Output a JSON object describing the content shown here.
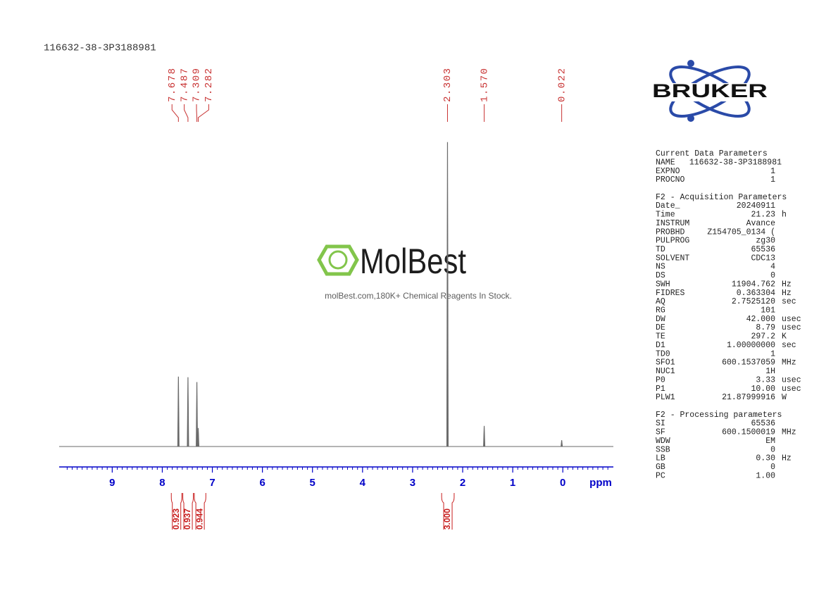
{
  "title": "116632-38-3P3188981",
  "chart_data": {
    "type": "nmr",
    "x_label": "ppm",
    "xlim": [
      10.06,
      -1.01
    ],
    "xticks": [
      9,
      8,
      7,
      6,
      5,
      4,
      3,
      2,
      1,
      0
    ],
    "x_minor_tick_interval": 0.1,
    "ylim": [
      0,
      100
    ],
    "axis_color": "#0000c8",
    "spectrum_color": "#6a6a6a",
    "peaks": {
      "x": [
        7.678,
        7.487,
        7.309,
        7.282,
        2.303,
        1.57,
        0.022
      ],
      "x_labels": [
        "7.678",
        "7.487",
        "7.309",
        "7.282",
        "2.303",
        "1.570",
        "0.022"
      ],
      "values": [
        22.9,
        22.7,
        21.1,
        6,
        100,
        6.7,
        2
      ],
      "color": "#c83232"
    },
    "integrals": {
      "ranges": [
        [
          7.82,
          7.61
        ],
        [
          7.59,
          7.38
        ],
        [
          7.36,
          7.13
        ],
        [
          2.42,
          2.17
        ]
      ],
      "values": [
        0.923,
        0.937,
        0.944,
        3
      ],
      "value_labels": [
        "0.923",
        "0.937",
        "0.944",
        "3.000"
      ],
      "color": "#c81e1e"
    }
  },
  "watermark": {
    "brand": "MolBest",
    "tagline": "molBest.com,180K+ Chemical Reagents In Stock."
  },
  "logo": {
    "text": "BRUKER"
  },
  "parameters": [
    {
      "title": "Current Data Parameters",
      "rows": [
        [
          "NAME",
          "116632-38-3P3188981"
        ],
        [
          "EXPNO",
          "1"
        ],
        [
          "PROCNO",
          "1"
        ]
      ]
    },
    {
      "title": "F2 - Acquisition Parameters",
      "rows": [
        [
          "Date_",
          "20240911"
        ],
        [
          "Time",
          "21.23",
          "h"
        ],
        [
          "INSTRUM",
          "Avance"
        ],
        [
          "PROBHD",
          "Z154705_0134 ("
        ],
        [
          "PULPROG",
          "zg30"
        ],
        [
          "TD",
          "65536"
        ],
        [
          "SOLVENT",
          "CDC13"
        ],
        [
          "NS",
          "4"
        ],
        [
          "DS",
          "0"
        ],
        [
          "SWH",
          "11904.762",
          "Hz"
        ],
        [
          "FIDRES",
          "0.363304",
          "Hz"
        ],
        [
          "AQ",
          "2.7525120",
          "sec"
        ],
        [
          "RG",
          "101"
        ],
        [
          "DW",
          "42.000",
          "usec"
        ],
        [
          "DE",
          "8.79",
          "usec"
        ],
        [
          "TE",
          "297.2",
          "K"
        ],
        [
          "D1",
          "1.00000000",
          "sec"
        ],
        [
          "TD0",
          "1"
        ],
        [
          "SFO1",
          "600.1537059",
          "MHz"
        ],
        [
          "NUC1",
          "1H"
        ],
        [
          "P0",
          "3.33",
          "usec"
        ],
        [
          "P1",
          "10.00",
          "usec"
        ],
        [
          "PLW1",
          "21.87999916",
          "W"
        ]
      ]
    },
    {
      "title": "F2 - Processing parameters",
      "rows": [
        [
          "SI",
          "65536"
        ],
        [
          "SF",
          "600.1500019",
          "MHz"
        ],
        [
          "WDW",
          "EM"
        ],
        [
          "SSB",
          "0"
        ],
        [
          "LB",
          "0.30",
          "Hz"
        ],
        [
          "GB",
          "0"
        ],
        [
          "PC",
          "1.00"
        ]
      ]
    }
  ]
}
